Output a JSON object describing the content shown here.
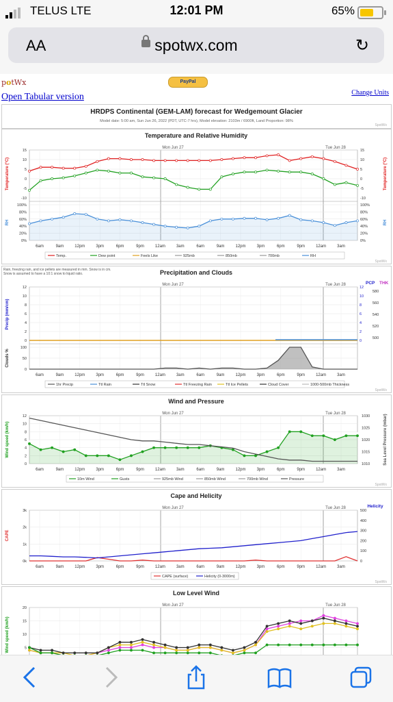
{
  "status": {
    "carrier": "TELUS  LTE",
    "time": "12:01 PM",
    "battery": "65%"
  },
  "browser": {
    "aa": "AA",
    "url": "spotwx.com"
  },
  "site": {
    "logo_a": "p",
    "logo_b": "tWx",
    "paypal": "PayPal",
    "tabular_link": "Open Tabular version",
    "units_link": "Change Units",
    "title": "HRDPS Continental (GEM-LAM) forecast for Wedgemount Glacier",
    "subtitle": "Model date: 5:00 am, Sun Jun 26, 2022 (PDT, UTC-7 hrs), Model elevation: 2103m / 6900ft, Land Proportion: 98%",
    "credit": "SpotWx"
  },
  "axis": {
    "hours": [
      "6am",
      "9am",
      "12pm",
      "3pm",
      "6pm",
      "9pm",
      "12am",
      "3am",
      "6am",
      "9am",
      "12pm",
      "3pm",
      "6pm",
      "9pm",
      "12am",
      "3am"
    ],
    "day1": "Mon Jun 27",
    "day2": "Tue Jun 28"
  },
  "colors": {
    "temp": "#e02020",
    "dew": "#20a020",
    "rh": "#4a90d9",
    "pressure": "#555555",
    "cape": "#e03030",
    "helicity": "#2020cc",
    "gust": "#20a020",
    "low_pink": "#e040e0",
    "low_yellow": "#e0c020"
  },
  "chart_data": [
    {
      "type": "line",
      "title": "Temperature and Relative Humidity",
      "ylabel": "Temperature (°C)",
      "ylabel_right": "Temperature (°C)",
      "ylim": [
        -10,
        15
      ],
      "yticks": [
        "15",
        "10",
        "5",
        "0",
        "-5",
        "-10"
      ],
      "y2label": "RH",
      "y2ticks": [
        "100%",
        "80%",
        "60%",
        "40%",
        "20%",
        "0%"
      ],
      "legend": [
        "Temp.",
        "Dew point",
        "Feels Like",
        "925mb",
        "850mb",
        "700mb",
        "RH"
      ],
      "series": [
        {
          "name": "Temp.",
          "values": [
            4,
            6,
            6,
            5.5,
            5.5,
            6.5,
            9,
            10.5,
            10.5,
            10,
            10,
            9.5,
            9.5,
            9.5,
            9.5,
            9.5,
            9.5,
            10,
            10.5,
            11,
            11,
            12,
            12.5,
            9.5,
            10.5,
            11.5,
            10.5,
            9,
            7,
            5
          ]
        },
        {
          "name": "Dew point",
          "values": [
            -6,
            -1,
            0,
            0.5,
            1.5,
            3,
            4.5,
            4,
            3,
            3,
            1,
            0.5,
            0,
            -3,
            -4.5,
            -5.5,
            -5.5,
            1,
            2.5,
            3.5,
            3.5,
            4.5,
            4,
            3.5,
            3.5,
            2.5,
            0,
            -3,
            -2,
            -3.5
          ]
        },
        {
          "name": "RH",
          "values": [
            47,
            55,
            60,
            65,
            75,
            73,
            60,
            55,
            58,
            55,
            50,
            45,
            40,
            37,
            35,
            40,
            55,
            60,
            60,
            62,
            62,
            58,
            62,
            70,
            58,
            55,
            50,
            42,
            50,
            55
          ]
        }
      ]
    },
    {
      "type": "bar",
      "title": "Precipitation and Clouds",
      "note1": "Rain, freezing rain, and ice pellets are measured in mm. Snow is in cm.",
      "note2": "Snow is assumed to have a 10:1 snow to liquid ratio.",
      "ylabel": "Precip (mm/cm)",
      "ylim": [
        0,
        12
      ],
      "yticks": [
        "12",
        "10",
        "8",
        "6",
        "4",
        "2",
        "0"
      ],
      "y2label": "PCP",
      "y3label": "THK",
      "y3ticks": [
        "580",
        "560",
        "540",
        "520",
        "500"
      ],
      "cloud_label": "Clouds %",
      "cloud_ticks": [
        "100",
        "50",
        "0"
      ],
      "legend": [
        "1hr Precip",
        "Ttl Rain",
        "Ttl Snow",
        "Ttl Freezing Rain",
        "Ttl Ice Pellets",
        "Cloud Cover",
        "1000-500mb Thickness"
      ],
      "cloud_cover": [
        0,
        0,
        0,
        0,
        0,
        0,
        0,
        0,
        0,
        0,
        0,
        0,
        5,
        5,
        0,
        5,
        0,
        5,
        5,
        0,
        0,
        5,
        40,
        100,
        100,
        10,
        0,
        0,
        0,
        0
      ]
    },
    {
      "type": "line",
      "title": "Wind and Pressure",
      "ylabel": "Wind speed (km/h)",
      "ylim": [
        0,
        12
      ],
      "yticks": [
        "12",
        "10",
        "8",
        "6",
        "4",
        "2",
        "0"
      ],
      "y2label": "Sea Level Pressure (mbar)",
      "y2ticks": [
        "1030",
        "1025",
        "1020",
        "1015",
        "1010"
      ],
      "legend": [
        "10m Wind",
        "Gusts",
        "925mb Wind",
        "850mb Wind",
        "700mb Wind",
        "Pressure"
      ],
      "series": [
        {
          "name": "10m Wind",
          "values": [
            5,
            3.5,
            4,
            3,
            3.5,
            2,
            2,
            2,
            1,
            2,
            3,
            4,
            4,
            4,
            4,
            4,
            4.5,
            4,
            3.5,
            2,
            2,
            3,
            4,
            8,
            8,
            7,
            7,
            6,
            7,
            7
          ]
        },
        {
          "name": "Pressure",
          "values": [
            1029,
            1028,
            1027,
            1026,
            1025,
            1024,
            1023,
            1022,
            1021,
            1020,
            1019.5,
            1019.5,
            1019,
            1018.5,
            1018,
            1018,
            1017.5,
            1017,
            1016.5,
            1015,
            1014,
            1013,
            1012,
            1011.5,
            1011.5,
            1011,
            1011,
            1011,
            1011,
            1011
          ]
        }
      ]
    },
    {
      "type": "line",
      "title": "Cape and Helicity",
      "ylabel": "CAPE",
      "ylim": [
        0,
        3000
      ],
      "yticks": [
        "3k",
        "2k",
        "1k",
        "0k"
      ],
      "y2label": "Helicity",
      "y2ticks": [
        "500",
        "400",
        "300",
        "200",
        "100",
        "0"
      ],
      "legend": [
        "CAPE (surface)",
        "Helicity (0-3000m)"
      ],
      "series": [
        {
          "name": "CAPE (surface)",
          "values": [
            0,
            0,
            0,
            0,
            0,
            0,
            200,
            100,
            0,
            0,
            50,
            0,
            0,
            0,
            0,
            0,
            0,
            0,
            0,
            0,
            50,
            0,
            0,
            0,
            0,
            0,
            0,
            0,
            250,
            0
          ]
        },
        {
          "name": "Helicity (0-3000m)",
          "values": [
            50,
            50,
            45,
            40,
            40,
            35,
            30,
            40,
            50,
            60,
            70,
            80,
            90,
            100,
            110,
            120,
            125,
            130,
            140,
            150,
            160,
            170,
            180,
            190,
            200,
            220,
            240,
            260,
            280,
            290
          ]
        }
      ]
    },
    {
      "type": "line",
      "title": "Low Level Wind",
      "ylabel": "Wind speed (km/h)",
      "ylim": [
        0,
        20
      ],
      "yticks": [
        "20",
        "15",
        "10",
        "5",
        "0"
      ],
      "series": [
        {
          "name": "Pink",
          "values": [
            4,
            3,
            3,
            2,
            2,
            2,
            3,
            4,
            5,
            5,
            6,
            5,
            5,
            4,
            4,
            5,
            5,
            4,
            3,
            4,
            6,
            12,
            13,
            14,
            15,
            15,
            17,
            16,
            15,
            14
          ]
        },
        {
          "name": "Yellow",
          "values": [
            4,
            3,
            3,
            3,
            2,
            2,
            3,
            5,
            6,
            6,
            7,
            6,
            5,
            4,
            4,
            5,
            5,
            4,
            3,
            4,
            6,
            11,
            12,
            13,
            12,
            13,
            14,
            14,
            13,
            12
          ]
        },
        {
          "name": "Dark",
          "values": [
            5,
            4,
            4,
            3,
            3,
            3,
            3,
            5,
            7,
            7,
            8,
            7,
            6,
            5,
            5,
            6,
            6,
            5,
            4,
            5,
            7,
            13,
            14,
            15,
            14,
            15,
            16,
            15,
            14,
            13
          ]
        },
        {
          "name": "Green",
          "values": [
            5,
            3,
            3,
            2,
            2,
            2,
            2,
            3,
            4,
            4,
            4,
            3,
            3,
            3,
            3,
            3,
            3,
            2,
            2,
            3,
            3,
            6,
            6,
            6,
            6,
            6,
            6,
            6,
            6,
            6
          ]
        }
      ]
    }
  ]
}
